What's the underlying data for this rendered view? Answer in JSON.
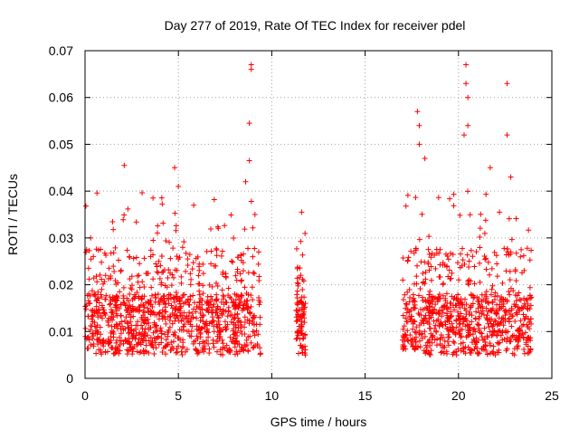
{
  "chart_data": {
    "type": "scatter",
    "title": "Day 277 of 2019, Rate Of TEC Index for receiver pdel",
    "xlabel": "GPS time / hours",
    "ylabel": "ROTI / TECUs",
    "xlim": [
      0,
      25
    ],
    "ylim": [
      0,
      0.07
    ],
    "xticks": [
      0,
      5,
      10,
      15,
      20,
      25
    ],
    "yticks": [
      0,
      0.01,
      0.02,
      0.03,
      0.04,
      0.05,
      0.06,
      0.07
    ],
    "ytick_labels": [
      "0",
      "0.01",
      "0.02",
      "0.03",
      "0.04",
      "0.05",
      "0.06",
      "0.07"
    ],
    "grid": true,
    "marker": "+",
    "color": "#ff0000",
    "observation_windows": [
      {
        "x_start": 0.0,
        "x_end": 9.4,
        "y_min": 0.002,
        "y_max": 0.067
      },
      {
        "x_start": 11.3,
        "x_end": 11.8,
        "y_min": 0.005,
        "y_max": 0.035
      },
      {
        "x_start": 17.0,
        "x_end": 23.9,
        "y_min": 0.003,
        "y_max": 0.067
      }
    ],
    "notable_points": [
      {
        "x": 8.9,
        "y": 0.067
      },
      {
        "x": 8.9,
        "y": 0.066
      },
      {
        "x": 8.8,
        "y": 0.0545
      },
      {
        "x": 8.8,
        "y": 0.0465
      },
      {
        "x": 4.8,
        "y": 0.045
      },
      {
        "x": 2.1,
        "y": 0.0455
      },
      {
        "x": 5.0,
        "y": 0.041
      },
      {
        "x": 8.6,
        "y": 0.042
      },
      {
        "x": 11.6,
        "y": 0.0355
      },
      {
        "x": 17.8,
        "y": 0.057
      },
      {
        "x": 17.9,
        "y": 0.054
      },
      {
        "x": 17.9,
        "y": 0.05
      },
      {
        "x": 18.2,
        "y": 0.047
      },
      {
        "x": 20.4,
        "y": 0.067
      },
      {
        "x": 20.4,
        "y": 0.063
      },
      {
        "x": 20.5,
        "y": 0.06
      },
      {
        "x": 20.5,
        "y": 0.054
      },
      {
        "x": 20.3,
        "y": 0.052
      },
      {
        "x": 22.6,
        "y": 0.063
      },
      {
        "x": 22.6,
        "y": 0.052
      },
      {
        "x": 21.7,
        "y": 0.045
      },
      {
        "x": 22.8,
        "y": 0.043
      },
      {
        "x": 0.3,
        "y": 0.03
      },
      {
        "x": 9.1,
        "y": 0.035
      }
    ],
    "series": [
      {
        "name": "ROTI",
        "color": "#ff0000",
        "marker": "+"
      }
    ]
  }
}
